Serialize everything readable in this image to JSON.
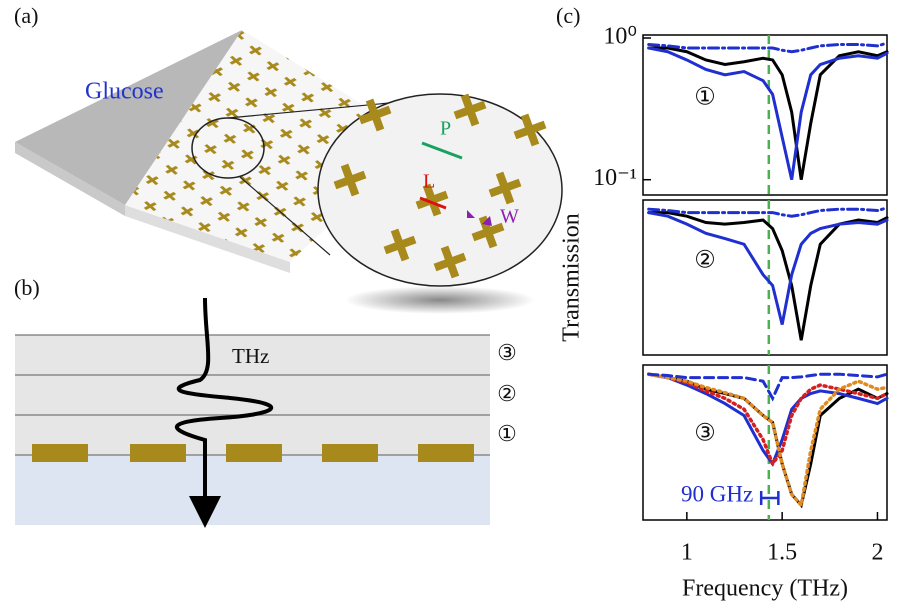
{
  "panel_labels": [
    "(a)",
    "(b)",
    "(c)"
  ],
  "panel_a": {
    "sample_label": "Glucose",
    "dims": [
      "P",
      "L",
      "W"
    ]
  },
  "panel_b": {
    "wave_label": "THz",
    "layers": [
      "③",
      "②",
      "①"
    ]
  },
  "chart_data": [
    {
      "type": "line",
      "panel_label": "①",
      "ylabel": "Transmission",
      "log_scale": true,
      "x": [
        0.8,
        0.9,
        1.0,
        1.1,
        1.2,
        1.3,
        1.4,
        1.45,
        1.5,
        1.55,
        1.6,
        1.65,
        1.7,
        1.8,
        1.9,
        2.0,
        2.05
      ],
      "xlim": [
        0.77,
        2.05
      ],
      "ylim": [
        0.078,
        1.05
      ],
      "yticks": [
        {
          "value": 1,
          "label": "10⁰"
        },
        {
          "value": 0.1,
          "label": "10⁻¹"
        }
      ],
      "vline": 1.43,
      "vline_color": "#4caf50",
      "series": [
        {
          "color": "#000000",
          "style": "solid",
          "values": [
            0.85,
            0.85,
            0.8,
            0.7,
            0.65,
            0.68,
            0.72,
            0.7,
            0.55,
            0.3,
            0.1,
            0.25,
            0.55,
            0.75,
            0.8,
            0.75,
            0.8
          ]
        },
        {
          "color": "#1f2fd0",
          "style": "solid",
          "values": [
            0.85,
            0.8,
            0.7,
            0.6,
            0.55,
            0.58,
            0.5,
            0.4,
            0.2,
            0.1,
            0.3,
            0.55,
            0.65,
            0.72,
            0.75,
            0.72,
            0.78
          ]
        },
        {
          "color": "#1f2fd0",
          "style": "dashdot",
          "values": [
            0.9,
            0.88,
            0.85,
            0.85,
            0.85,
            0.85,
            0.85,
            0.85,
            0.82,
            0.8,
            0.82,
            0.85,
            0.88,
            0.9,
            0.9,
            0.88,
            0.92
          ]
        }
      ]
    },
    {
      "type": "line",
      "panel_label": "②",
      "log_scale": true,
      "x": [
        0.8,
        0.9,
        1.0,
        1.1,
        1.2,
        1.3,
        1.4,
        1.45,
        1.5,
        1.55,
        1.6,
        1.65,
        1.7,
        1.8,
        1.9,
        2.0,
        2.05
      ],
      "xlim": [
        0.77,
        2.05
      ],
      "ylim": [
        0.078,
        1.05
      ],
      "vline": 1.43,
      "vline_color": "#4caf50",
      "series": [
        {
          "color": "#000000",
          "style": "solid",
          "values": [
            0.85,
            0.85,
            0.8,
            0.72,
            0.7,
            0.72,
            0.75,
            0.65,
            0.45,
            0.25,
            0.1,
            0.25,
            0.5,
            0.7,
            0.75,
            0.72,
            0.78
          ]
        },
        {
          "color": "#1f2fd0",
          "style": "solid",
          "values": [
            0.85,
            0.8,
            0.7,
            0.6,
            0.55,
            0.5,
            0.3,
            0.25,
            0.13,
            0.3,
            0.5,
            0.6,
            0.65,
            0.7,
            0.72,
            0.7,
            0.75
          ]
        },
        {
          "color": "#1f2fd0",
          "style": "dashdot",
          "values": [
            0.9,
            0.88,
            0.85,
            0.85,
            0.85,
            0.85,
            0.85,
            0.85,
            0.82,
            0.8,
            0.82,
            0.85,
            0.88,
            0.9,
            0.9,
            0.88,
            0.92
          ]
        }
      ]
    },
    {
      "type": "line",
      "panel_label": "③",
      "log_scale": true,
      "xlabel": "Frequency (THz)",
      "x": [
        0.8,
        0.9,
        1.0,
        1.1,
        1.2,
        1.3,
        1.4,
        1.45,
        1.5,
        1.55,
        1.6,
        1.65,
        1.7,
        1.8,
        1.9,
        2.0,
        2.05
      ],
      "xlim": [
        0.77,
        2.05
      ],
      "ylim": [
        0.078,
        1.05
      ],
      "xticks": [
        1,
        1.5,
        2
      ],
      "vline": 1.43,
      "vline_color": "#4caf50",
      "annotation": {
        "text": "90 GHz",
        "x_start": 1.39,
        "x_end": 1.48,
        "color": "#1f2fd0"
      },
      "series": [
        {
          "color": "#000000",
          "style": "solid",
          "values": [
            0.9,
            0.85,
            0.8,
            0.7,
            0.65,
            0.6,
            0.45,
            0.4,
            0.2,
            0.12,
            0.1,
            0.2,
            0.45,
            0.6,
            0.7,
            0.6,
            0.65
          ]
        },
        {
          "color": "#1f2fd0",
          "style": "solid",
          "values": [
            0.9,
            0.85,
            0.75,
            0.65,
            0.55,
            0.45,
            0.25,
            0.2,
            0.3,
            0.5,
            0.6,
            0.65,
            0.68,
            0.65,
            0.6,
            0.55,
            0.6
          ]
        },
        {
          "color": "#d42020",
          "style": "dotted",
          "values": [
            0.9,
            0.85,
            0.78,
            0.68,
            0.6,
            0.5,
            0.3,
            0.2,
            0.25,
            0.45,
            0.6,
            0.7,
            0.75,
            0.7,
            0.65,
            0.6,
            0.65
          ]
        },
        {
          "color": "#e08a20",
          "style": "dotted",
          "values": [
            0.9,
            0.85,
            0.8,
            0.72,
            0.66,
            0.6,
            0.45,
            0.4,
            0.2,
            0.12,
            0.1,
            0.25,
            0.5,
            0.7,
            0.8,
            0.7,
            0.72
          ]
        },
        {
          "color": "#1f2fd0",
          "style": "dashed",
          "values": [
            0.9,
            0.88,
            0.85,
            0.85,
            0.85,
            0.85,
            0.8,
            0.6,
            0.85,
            0.85,
            0.86,
            0.88,
            0.9,
            0.9,
            0.88,
            0.86,
            0.9
          ]
        }
      ]
    }
  ]
}
